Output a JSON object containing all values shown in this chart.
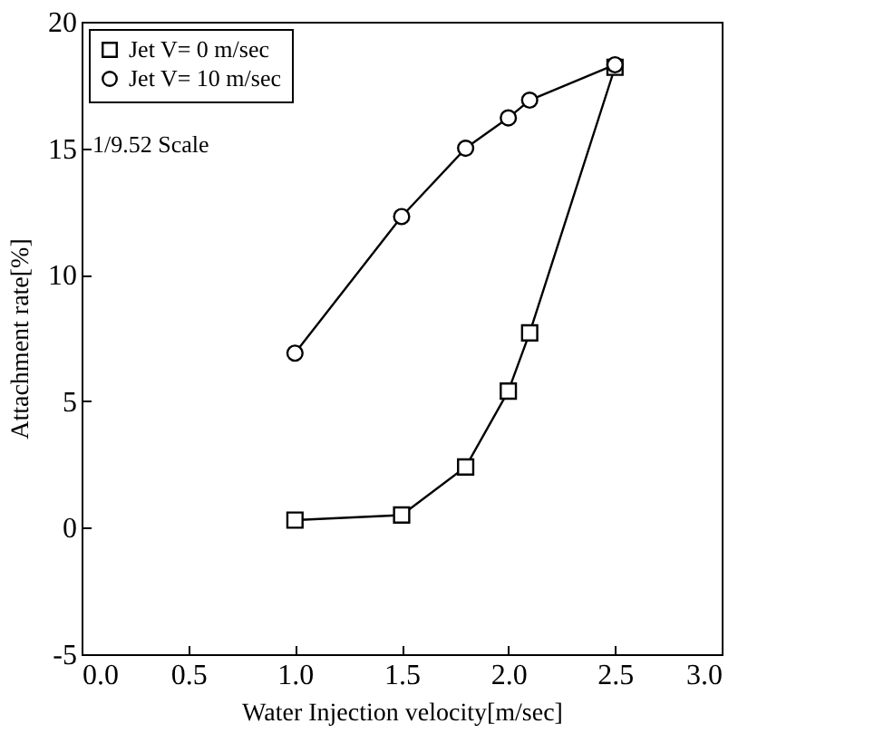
{
  "chart_data": {
    "type": "line",
    "xlabel": "Water Injection velocity[m/sec]",
    "ylabel": "Attachment rate[%]",
    "xlim": [
      0,
      3
    ],
    "xticks": [
      {
        "value": 0,
        "label": "0.0"
      },
      {
        "value": 0.5,
        "label": "0.5"
      },
      {
        "value": 1,
        "label": "1.0"
      },
      {
        "value": 1.5,
        "label": "1.5"
      },
      {
        "value": 2,
        "label": "2.0"
      },
      {
        "value": 2.5,
        "label": "2.5"
      },
      {
        "value": 3,
        "label": "3.0"
      }
    ],
    "ylim": [
      -5,
      20
    ],
    "yticks": [
      -5,
      0,
      5,
      10,
      15,
      20
    ],
    "x": [
      1.0,
      1.5,
      1.8,
      2.0,
      2.1,
      2.5
    ],
    "series": [
      {
        "name": "Jet V= 0 m/sec",
        "color": "#000000",
        "marker": "square",
        "values": [
          0.3,
          0.5,
          2.4,
          5.4,
          7.7,
          18.2
        ]
      },
      {
        "name": "Jet V= 10 m/sec",
        "color": "#000000",
        "marker": "circle",
        "values": [
          6.9,
          12.3,
          15.0,
          16.2,
          16.9,
          18.3
        ]
      }
    ],
    "legend": "top left",
    "grid": false,
    "annotations": [
      "1/9.52 Scale"
    ]
  }
}
